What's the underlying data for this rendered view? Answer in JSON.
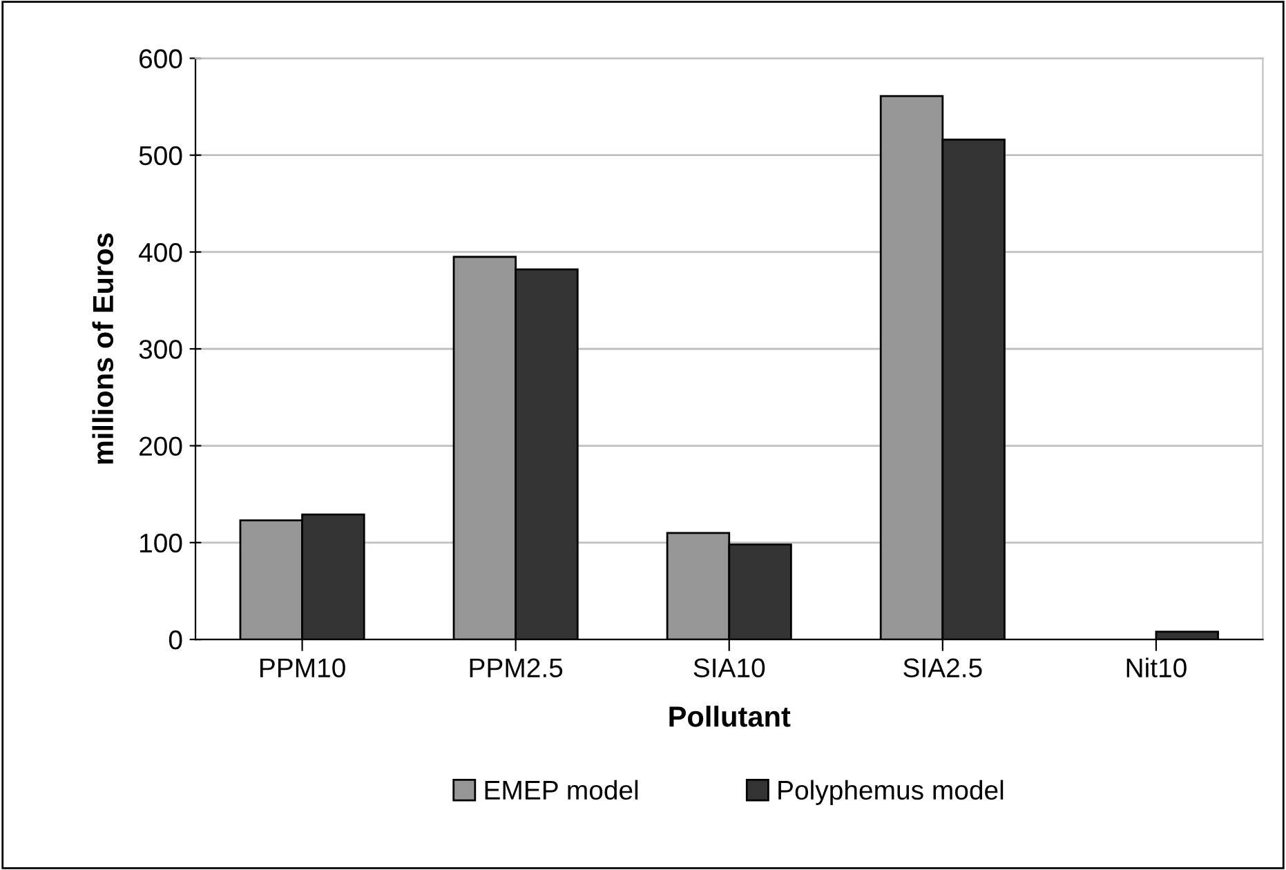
{
  "chart_data": {
    "type": "bar",
    "xlabel": "Pollutant",
    "ylabel": "millions of Euros",
    "categories": [
      "PPM10",
      "PPM2.5",
      "SIA10",
      "SIA2.5",
      "Nit10"
    ],
    "series": [
      {
        "name": "EMEP model",
        "color": "#969696",
        "values": [
          123,
          395,
          110,
          561,
          null
        ]
      },
      {
        "name": "Polyphemus model",
        "color": "#333333",
        "values": [
          129,
          382,
          98,
          516,
          8
        ]
      }
    ],
    "ylim": [
      0,
      600
    ],
    "yticks": [
      0,
      100,
      200,
      300,
      400,
      500,
      600
    ],
    "grid": "y",
    "legend": "bottom"
  }
}
